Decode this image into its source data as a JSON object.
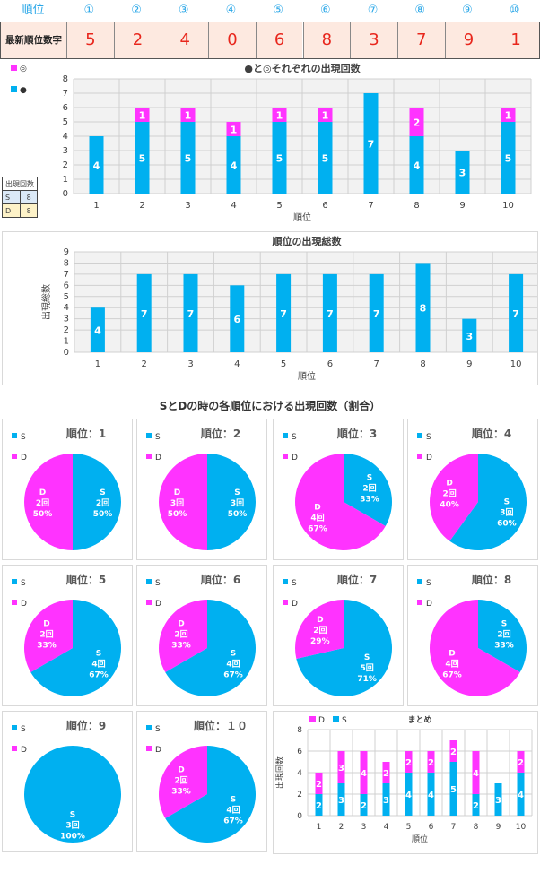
{
  "header": {
    "rank_label": "順位",
    "ranks": [
      "①",
      "②",
      "③",
      "④",
      "⑤",
      "⑥",
      "⑦",
      "⑧",
      "⑨",
      "⑩"
    ],
    "latest_label": "最新順位数字",
    "latest_digits": [
      "5",
      "2",
      "4",
      "0",
      "6",
      "8",
      "3",
      "7",
      "9",
      "1"
    ]
  },
  "legend_top": {
    "pink_label": "◎",
    "blue_label": "●"
  },
  "mini_table": {
    "header": "出現回数",
    "rows": [
      {
        "k": "S",
        "v": "8"
      },
      {
        "k": "D",
        "v": "8"
      }
    ]
  },
  "section_title": "SとDの時の各順位における出現回数（割合）",
  "colors": {
    "blue": "#00b0f0",
    "pink": "#ff33ff"
  },
  "chart_data": [
    {
      "type": "bar",
      "title": "●と◎それぞれの出現回数",
      "xlabel": "順位",
      "ylabel": "出現回数",
      "ylim": [
        0,
        8
      ],
      "categories": [
        "1",
        "2",
        "3",
        "4",
        "5",
        "6",
        "7",
        "8",
        "9",
        "10"
      ],
      "series": [
        {
          "name": "●",
          "values": [
            4,
            5,
            5,
            4,
            5,
            5,
            7,
            4,
            3,
            5
          ]
        },
        {
          "name": "◎",
          "values": [
            0,
            1,
            1,
            1,
            1,
            1,
            0,
            2,
            0,
            1
          ]
        }
      ]
    },
    {
      "type": "bar",
      "title": "順位の出現総数",
      "xlabel": "順位",
      "ylabel": "出現総数",
      "ylim": [
        0,
        9
      ],
      "categories": [
        "1",
        "2",
        "3",
        "4",
        "5",
        "6",
        "7",
        "8",
        "9",
        "10"
      ],
      "values": [
        4,
        7,
        7,
        6,
        7,
        7,
        7,
        8,
        3,
        7
      ]
    },
    {
      "type": "pie",
      "title": "順位：1",
      "slices": [
        {
          "name": "S",
          "value": 2,
          "label": "2回",
          "pct": "50%"
        },
        {
          "name": "D",
          "value": 2,
          "label": "2回",
          "pct": "50%"
        }
      ]
    },
    {
      "type": "pie",
      "title": "順位：2",
      "slices": [
        {
          "name": "S",
          "value": 3,
          "label": "3回",
          "pct": "50%"
        },
        {
          "name": "D",
          "value": 3,
          "label": "3回",
          "pct": "50%"
        }
      ]
    },
    {
      "type": "pie",
      "title": "順位：3",
      "slices": [
        {
          "name": "S",
          "value": 2,
          "label": "2回",
          "pct": "33%"
        },
        {
          "name": "D",
          "value": 4,
          "label": "4回",
          "pct": "67%"
        }
      ]
    },
    {
      "type": "pie",
      "title": "順位：4",
      "slices": [
        {
          "name": "S",
          "value": 3,
          "label": "3回",
          "pct": "60%"
        },
        {
          "name": "D",
          "value": 2,
          "label": "2回",
          "pct": "40%"
        }
      ]
    },
    {
      "type": "pie",
      "title": "順位：5",
      "slices": [
        {
          "name": "S",
          "value": 4,
          "label": "4回",
          "pct": "67%"
        },
        {
          "name": "D",
          "value": 2,
          "label": "2回",
          "pct": "33%"
        }
      ]
    },
    {
      "type": "pie",
      "title": "順位：6",
      "slices": [
        {
          "name": "S",
          "value": 4,
          "label": "4回",
          "pct": "67%"
        },
        {
          "name": "D",
          "value": 2,
          "label": "2回",
          "pct": "33%"
        }
      ]
    },
    {
      "type": "pie",
      "title": "順位：7",
      "slices": [
        {
          "name": "S",
          "value": 5,
          "label": "5回",
          "pct": "71%"
        },
        {
          "name": "D",
          "value": 2,
          "label": "2回",
          "pct": "29%"
        }
      ]
    },
    {
      "type": "pie",
      "title": "順位：8",
      "slices": [
        {
          "name": "S",
          "value": 2,
          "label": "2回",
          "pct": "33%"
        },
        {
          "name": "D",
          "value": 4,
          "label": "4回",
          "pct": "67%"
        }
      ]
    },
    {
      "type": "pie",
      "title": "順位：9",
      "slices": [
        {
          "name": "S",
          "value": 3,
          "label": "3回",
          "pct": "100%"
        },
        {
          "name": "D",
          "value": 0,
          "label": "",
          "pct": "0%"
        }
      ]
    },
    {
      "type": "pie",
      "title": "順位：１０",
      "slices": [
        {
          "name": "S",
          "value": 4,
          "label": "4回",
          "pct": "67%"
        },
        {
          "name": "D",
          "value": 2,
          "label": "2回",
          "pct": "33%"
        }
      ]
    },
    {
      "type": "bar",
      "title": "まとめ",
      "xlabel": "順位",
      "ylabel": "出現回数",
      "ylim": [
        0,
        8
      ],
      "categories": [
        "1",
        "2",
        "3",
        "4",
        "5",
        "6",
        "7",
        "8",
        "9",
        "10"
      ],
      "series": [
        {
          "name": "S",
          "values": [
            2,
            3,
            2,
            3,
            4,
            4,
            5,
            2,
            3,
            4
          ]
        },
        {
          "name": "D",
          "values": [
            2,
            3,
            4,
            2,
            2,
            2,
            2,
            4,
            0,
            2
          ]
        }
      ]
    }
  ]
}
